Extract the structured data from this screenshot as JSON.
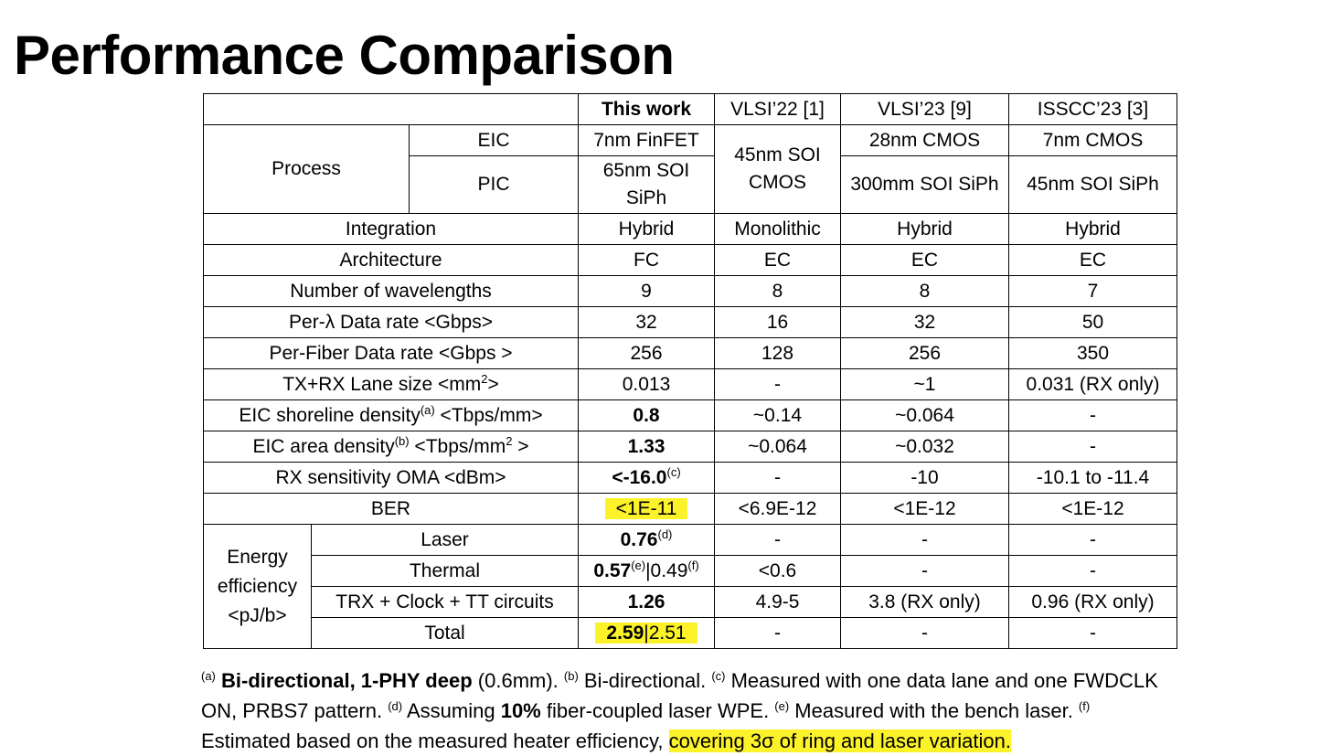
{
  "title": "Performance Comparison",
  "table": {
    "columns": [
      "This work",
      "VLSI’22 [1]",
      "VLSI’23 [9]",
      "ISSCC’23 [3]"
    ],
    "rows": [
      {
        "group": "Process",
        "label": "EIC",
        "cells": [
          "7nm FinFET",
          "45nm SOI CMOS",
          "28nm CMOS",
          "7nm CMOS"
        ]
      },
      {
        "label": "PIC",
        "cells": [
          "65nm SOI SiPh",
          "300mm SOI SiPh",
          "45nm SOI SiPh"
        ]
      },
      {
        "label": "Integration",
        "cells": [
          "Hybrid",
          "Monolithic",
          "Hybrid",
          "Hybrid"
        ]
      },
      {
        "label": "Architecture",
        "cells": [
          "FC",
          "EC",
          "EC",
          "EC"
        ]
      },
      {
        "label": "Number of wavelengths",
        "cells": [
          "9",
          "8",
          "8",
          "7"
        ]
      },
      {
        "label": "Per-λ Data rate <Gbps>",
        "cells": [
          "32",
          "16",
          "32",
          "50"
        ]
      },
      {
        "label": "Per-Fiber Data rate <Gbps >",
        "cells": [
          "256",
          "128",
          "256",
          "350"
        ]
      },
      {
        "label": [
          "TX+RX Lane size <mm",
          "2",
          ">"
        ],
        "cells": [
          "0.013",
          "-",
          "~1",
          "0.031 (RX only)"
        ]
      },
      {
        "label": [
          "EIC shoreline density",
          "(a)",
          " <Tbps/mm>"
        ],
        "cells": [
          "0.8",
          "~0.14",
          "~0.064",
          "-"
        ]
      },
      {
        "label": [
          "EIC area density",
          "(b)",
          " <Tbps/mm",
          "2",
          " >"
        ],
        "cells": [
          "1.33",
          "~0.064",
          "~0.032",
          "-"
        ]
      },
      {
        "label": "RX sensitivity OMA <dBm>",
        "cells": [
          [
            "<-16.0",
            "(c)"
          ],
          "-",
          "-10",
          "-10.1 to -11.4"
        ]
      },
      {
        "label": "BER",
        "cells": [
          "<1E-11",
          "<6.9E-12",
          "<1E-12",
          "<1E-12"
        ]
      },
      {
        "group": "Energy efficiency <pJ/b>",
        "label": "Laser",
        "cells": [
          [
            "0.76",
            "(d)"
          ],
          "-",
          "-",
          "-"
        ]
      },
      {
        "label": "Thermal",
        "cells": [
          [
            "0.57",
            "(e)",
            "|0.49",
            "(f)"
          ],
          "<0.6",
          "-",
          "-"
        ]
      },
      {
        "label": "TRX + Clock + TT circuits",
        "cells": [
          "1.26",
          "4.9-5",
          "3.8 (RX only)",
          "0.96 (RX only)"
        ]
      },
      {
        "label": "Total",
        "cells": [
          [
            "2.59",
            "|2.51"
          ],
          "-",
          "-",
          "-"
        ]
      }
    ]
  },
  "footnote": [
    "(a)",
    " Bi-directional, 1-PHY deep",
    " (0.6mm). ",
    "(b)",
    " Bi-directional. ",
    "(c)",
    " Measured with one data lane and one FWDCLK ON, PRBS7 pattern. ",
    "(d)",
    " Assuming ",
    "10%",
    " fiber-coupled laser WPE.  ",
    "(e)",
    " Measured with the bench laser. ",
    "(f)",
    " Estimated based on the measured heater efficiency, ",
    "covering 3σ of ring and laser variation."
  ]
}
